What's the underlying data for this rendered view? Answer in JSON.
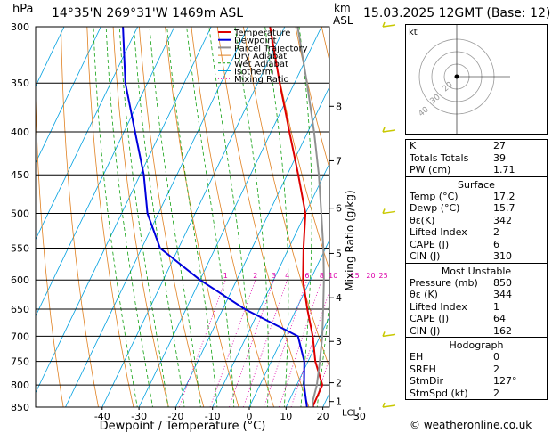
{
  "header": {
    "location": "14°35'N 269°31'W 1469m ASL",
    "date": "15.03.2025 12GMT (Base: 12)",
    "hpa_unit": "hPa",
    "km_unit": "km",
    "asl_unit": "ASL"
  },
  "chart_data": {
    "type": "skew-t",
    "xlabel": "Dewpoint / Temperature (°C)",
    "ylabel_left": "hPa",
    "ylabel_right": "Mixing Ratio (g/kg)",
    "pressure_ticks": [
      300,
      350,
      400,
      450,
      500,
      550,
      600,
      650,
      700,
      750,
      800,
      850
    ],
    "temp_ticks": [
      -40,
      -30,
      -20,
      -10,
      0,
      10,
      20,
      30
    ],
    "xlim": [
      -44,
      34
    ],
    "ylim": [
      850,
      300
    ],
    "km_ticks": [
      {
        "km": "1",
        "label": "LCL",
        "p": 837
      },
      {
        "km": "2",
        "p": 795
      },
      {
        "km": "3",
        "p": 710
      },
      {
        "km": "4",
        "p": 630
      },
      {
        "km": "5",
        "p": 558
      },
      {
        "km": "6",
        "p": 493
      },
      {
        "km": "7",
        "p": 433
      },
      {
        "km": "8",
        "p": 373
      }
    ],
    "mixing_ratio_labels": [
      "1",
      "2",
      "3",
      "4",
      "6",
      "8",
      "10",
      "15",
      "20",
      "25"
    ],
    "mixing_ratio_values": [
      1,
      2,
      3,
      4,
      6,
      8,
      10,
      15,
      20,
      25
    ],
    "legend": [
      "Temperature",
      "Dewpoint",
      "Parcel Trajectory",
      "Dry Adiabat",
      "Wet Adiabat",
      "Isotherm",
      "Mixing Ratio"
    ],
    "series": [
      {
        "name": "Temperature",
        "color": "#dd0000",
        "points": [
          [
            850,
            17.2
          ],
          [
            800,
            17
          ],
          [
            750,
            12
          ],
          [
            700,
            8
          ],
          [
            650,
            3
          ],
          [
            600,
            -2
          ],
          [
            550,
            -6
          ],
          [
            500,
            -10
          ],
          [
            450,
            -17
          ],
          [
            400,
            -25
          ],
          [
            350,
            -34
          ],
          [
            300,
            -44
          ]
        ]
      },
      {
        "name": "Dewpoint",
        "color": "#0000dd",
        "points": [
          [
            850,
            15.7
          ],
          [
            800,
            12
          ],
          [
            750,
            9
          ],
          [
            700,
            4
          ],
          [
            650,
            -14
          ],
          [
            600,
            -30
          ],
          [
            550,
            -45
          ],
          [
            500,
            -53
          ],
          [
            450,
            -59
          ],
          [
            400,
            -67
          ],
          [
            350,
            -76
          ],
          [
            300,
            -84
          ]
        ]
      },
      {
        "name": "Parcel Trajectory",
        "color": "#909090",
        "points": [
          [
            850,
            17.2
          ],
          [
            837,
            16.5
          ],
          [
            800,
            15.5
          ],
          [
            750,
            13.2
          ],
          [
            700,
            10.6
          ],
          [
            650,
            7.3
          ],
          [
            600,
            3.7
          ],
          [
            550,
            -0.6
          ],
          [
            500,
            -5.7
          ],
          [
            450,
            -11.4
          ],
          [
            400,
            -18.3
          ],
          [
            350,
            -26.6
          ],
          [
            300,
            -36.5
          ]
        ]
      }
    ],
    "colors": {
      "dry_adiabat": "#e08020",
      "wet_adiabat": "#10a010",
      "isotherm": "#00a0e0",
      "mixing_ratio": "#dd00aa"
    }
  },
  "hodograph": {
    "label": "kt",
    "rings": [
      "40",
      "30",
      "20"
    ]
  },
  "stats": [
    {
      "rows": [
        [
          "K",
          "27"
        ],
        [
          "Totals Totals",
          "39"
        ],
        [
          "PW (cm)",
          "1.71"
        ]
      ]
    },
    {
      "title": "Surface",
      "rows": [
        [
          "Temp (°C)",
          "17.2"
        ],
        [
          "Dewp (°C)",
          "15.7"
        ],
        [
          "θε(K)",
          "342"
        ],
        [
          "Lifted Index",
          "2"
        ],
        [
          "CAPE (J)",
          "6"
        ],
        [
          "CIN (J)",
          "310"
        ]
      ]
    },
    {
      "title": "Most Unstable",
      "rows": [
        [
          "Pressure (mb)",
          "850"
        ],
        [
          "θε (K)",
          "344"
        ],
        [
          "Lifted Index",
          "1"
        ],
        [
          "CAPE (J)",
          "64"
        ],
        [
          "CIN (J)",
          "162"
        ]
      ]
    },
    {
      "title": "Hodograph",
      "rows": [
        [
          "EH",
          "0"
        ],
        [
          "SREH",
          "2"
        ],
        [
          "StmDir",
          "127°"
        ],
        [
          "StmSpd (kt)",
          "2"
        ]
      ]
    }
  ],
  "footer": {
    "copyright": "© weatheronline.co.uk"
  }
}
